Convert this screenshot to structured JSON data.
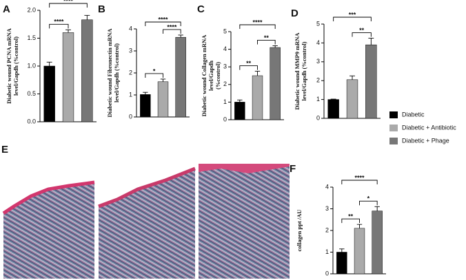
{
  "chart_data": [
    {
      "type": "bar",
      "panel": "A",
      "ylabel": [
        "Diabetic wound PCNA mRNA",
        "level/Gapdh  (%control)"
      ],
      "ylim": [
        0,
        2
      ],
      "yticks": [
        {
          "value": 0,
          "label": "0.0"
        },
        {
          "value": 0.5,
          "label": "0.5"
        },
        {
          "value": 1,
          "label": "1.0"
        },
        {
          "value": 1.5,
          "label": "1.5"
        },
        {
          "value": 2,
          "label": "2.0"
        }
      ],
      "values": [
        1.0,
        1.6,
        1.83
      ],
      "errors": [
        0.07,
        0.05,
        0.08
      ],
      "brackets": [
        {
          "from": 0,
          "to": 1,
          "label": "****"
        },
        {
          "from": 0,
          "to": 2,
          "label": "****"
        }
      ]
    },
    {
      "type": "bar",
      "panel": "B",
      "ylabel": [
        "Diabetic wound Fibronectin mRNA",
        "level/Gapdh (%control)"
      ],
      "ylim": [
        0,
        4
      ],
      "yticks": [
        0,
        1,
        2,
        3,
        4
      ],
      "values": [
        1.02,
        1.6,
        3.62
      ],
      "errors": [
        0.1,
        0.12,
        0.1
      ],
      "brackets": [
        {
          "from": 0,
          "to": 1,
          "label": "*"
        },
        {
          "from": 1,
          "to": 2,
          "label": "****"
        },
        {
          "from": 0,
          "to": 2,
          "label": "****"
        }
      ]
    },
    {
      "type": "bar",
      "panel": "C",
      "ylabel": [
        "Diabetic wound Collagen mRNA",
        "level/Gapdh",
        "(%control)"
      ],
      "ylim": [
        0,
        5
      ],
      "yticks": [
        0,
        1,
        2,
        3,
        4,
        5
      ],
      "values": [
        1.0,
        2.5,
        4.1
      ],
      "errors": [
        0.12,
        0.25,
        0.1
      ],
      "brackets": [
        {
          "from": 0,
          "to": 1,
          "label": "**"
        },
        {
          "from": 1,
          "to": 2,
          "label": "**"
        },
        {
          "from": 0,
          "to": 2,
          "label": "****"
        }
      ]
    },
    {
      "type": "bar",
      "panel": "D",
      "ylabel": [
        "Diabetic wound MMP9 mRNA",
        "level/Gapdh  (%control)"
      ],
      "ylim": [
        0,
        5
      ],
      "yticks": [
        0,
        1,
        2,
        3,
        4,
        5
      ],
      "values": [
        1.0,
        2.05,
        3.9
      ],
      "errors": [
        0.02,
        0.2,
        0.35
      ],
      "brackets": [
        {
          "from": 1,
          "to": 2,
          "label": "**"
        },
        {
          "from": 0,
          "to": 2,
          "label": "***"
        }
      ]
    },
    {
      "type": "bar",
      "panel": "F",
      "ylabel": [
        "collagen ppt /AU"
      ],
      "ylim": [
        0,
        4
      ],
      "yticks": [
        0,
        1,
        2,
        3,
        4
      ],
      "values": [
        1.0,
        2.1,
        2.9
      ],
      "errors": [
        0.15,
        0.18,
        0.2
      ],
      "brackets": [
        {
          "from": 0,
          "to": 1,
          "label": "**"
        },
        {
          "from": 1,
          "to": 2,
          "label": "*"
        },
        {
          "from": 0,
          "to": 2,
          "label": "****"
        }
      ]
    }
  ],
  "images": {
    "panel": "E"
  },
  "legend": [
    {
      "name": "Diabetic",
      "color": "#000000"
    },
    {
      "name": "Diabetic + Antibiotic",
      "color": "#aaaaaa"
    },
    {
      "name": "Diabetic + Phage",
      "color": "#777777"
    }
  ]
}
